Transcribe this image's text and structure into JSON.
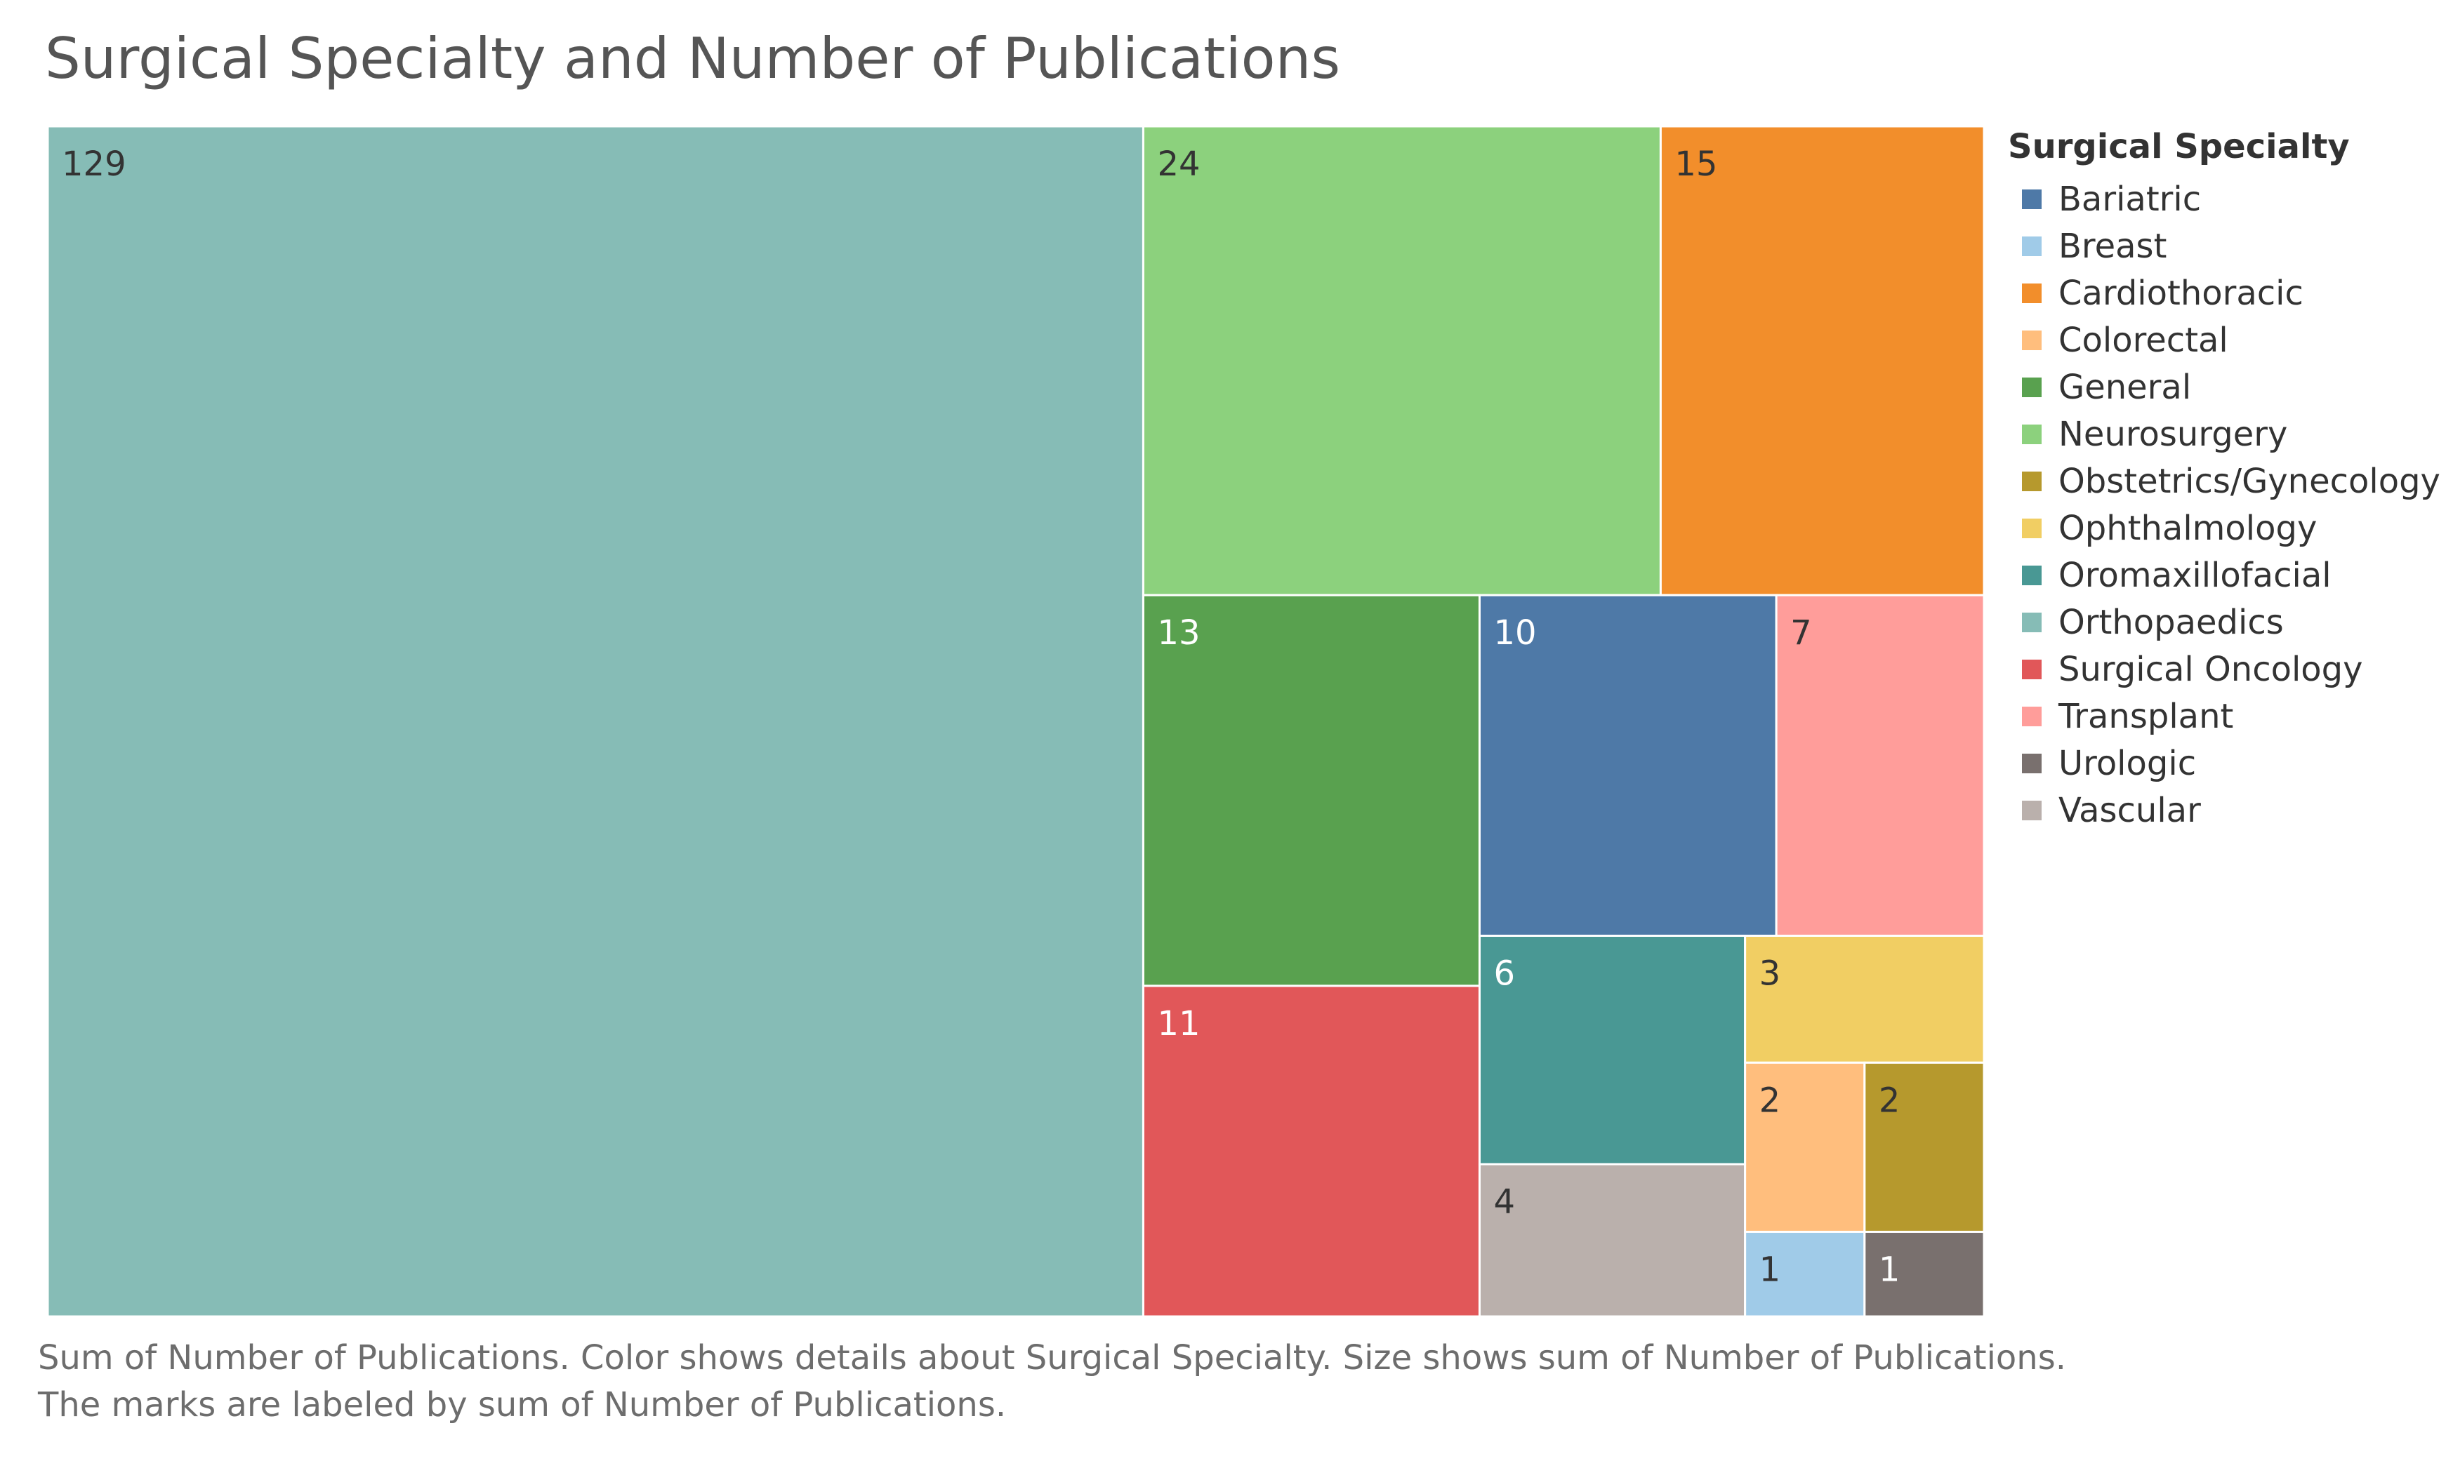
{
  "chart_data": {
    "type": "treemap",
    "title": "Surgical Specialty and Number of Publications",
    "legend_title": "Surgical Specialty",
    "legend_position": "right",
    "caption_lines": [
      "Sum of Number of Publications.  Color shows details about Surgical Specialty.  Size shows sum of Number of Publications.",
      "The marks are labeled by sum of Number of Publications."
    ],
    "categories": [
      {
        "name": "Bariatric",
        "color": "#4e79a7"
      },
      {
        "name": "Breast",
        "color": "#a0cbe8"
      },
      {
        "name": "Cardiothoracic",
        "color": "#f28e2b"
      },
      {
        "name": "Colorectal",
        "color": "#ffbe7d"
      },
      {
        "name": "General",
        "color": "#59a14f"
      },
      {
        "name": "Neurosurgery",
        "color": "#8cd17d"
      },
      {
        "name": "Obstetrics/Gynecology",
        "color": "#b6992d"
      },
      {
        "name": "Ophthalmology",
        "color": "#f1ce63"
      },
      {
        "name": "Oromaxillofacial",
        "color": "#499894"
      },
      {
        "name": "Orthopaedics",
        "color": "#86bcb6"
      },
      {
        "name": "Surgical Oncology",
        "color": "#e15759"
      },
      {
        "name": "Transplant",
        "color": "#ff9d9a"
      },
      {
        "name": "Urologic",
        "color": "#79706e"
      },
      {
        "name": "Vascular",
        "color": "#bab0ac"
      }
    ],
    "values": [
      {
        "name": "Orthopaedics",
        "value": 129,
        "label_color": "#333333"
      },
      {
        "name": "Neurosurgery",
        "value": 24,
        "label_color": "#333333"
      },
      {
        "name": "Cardiothoracic",
        "value": 15,
        "label_color": "#333333"
      },
      {
        "name": "General",
        "value": 13,
        "label_color": "#ffffff"
      },
      {
        "name": "Surgical Oncology",
        "value": 11,
        "label_color": "#ffffff"
      },
      {
        "name": "Bariatric",
        "value": 10,
        "label_color": "#ffffff"
      },
      {
        "name": "Transplant",
        "value": 7,
        "label_color": "#333333"
      },
      {
        "name": "Oromaxillofacial",
        "value": 6,
        "label_color": "#ffffff"
      },
      {
        "name": "Vascular",
        "value": 4,
        "label_color": "#333333"
      },
      {
        "name": "Ophthalmology",
        "value": 3,
        "label_color": "#333333"
      },
      {
        "name": "Colorectal",
        "value": 2,
        "label_color": "#333333"
      },
      {
        "name": "Obstetrics/Gynecology",
        "value": 2,
        "label_color": "#333333"
      },
      {
        "name": "Breast",
        "value": 1,
        "label_color": "#333333"
      },
      {
        "name": "Urologic",
        "value": 1,
        "label_color": "#ffffff"
      }
    ]
  }
}
